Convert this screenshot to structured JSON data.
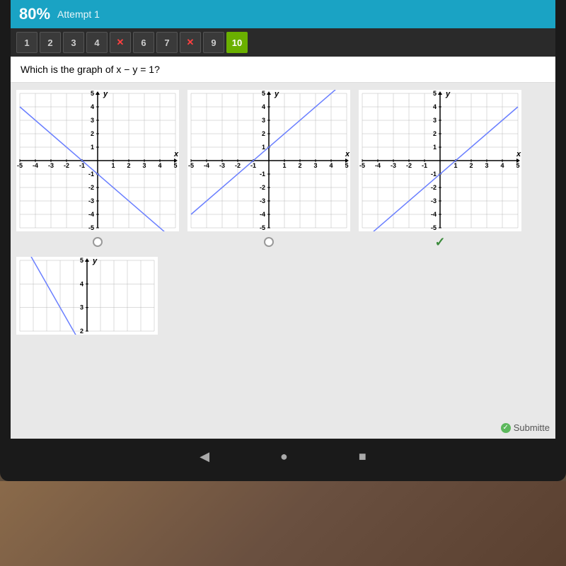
{
  "header": {
    "score": "80%",
    "attempt": "Attempt 1"
  },
  "nav": {
    "items": [
      {
        "label": "1",
        "state": "normal"
      },
      {
        "label": "2",
        "state": "normal"
      },
      {
        "label": "3",
        "state": "normal"
      },
      {
        "label": "4",
        "state": "normal"
      },
      {
        "label": "✕",
        "state": "wrong"
      },
      {
        "label": "6",
        "state": "normal"
      },
      {
        "label": "7",
        "state": "normal"
      },
      {
        "label": "✕",
        "state": "wrong"
      },
      {
        "label": "9",
        "state": "normal"
      },
      {
        "label": "10",
        "state": "current"
      }
    ]
  },
  "question": {
    "text": "Which is the graph of x − y = 1?"
  },
  "charts": {
    "axis": {
      "xmin": -5,
      "xmax": 5,
      "ymin": -5,
      "ymax": 5,
      "tick_step": 1,
      "grid_color": "#b8b8b8",
      "axis_color": "#000000",
      "line_color": "#6a7fff",
      "line_width": 1.5,
      "label_fontsize": 9,
      "y_label": "y",
      "x_label": "x"
    },
    "options": [
      {
        "slope": -1,
        "intercept": -1,
        "correct": false
      },
      {
        "slope": 1,
        "intercept": 1,
        "correct": false
      },
      {
        "slope": 1,
        "intercept": -1,
        "correct": true
      },
      {
        "slope": -1,
        "intercept": 1,
        "correct": false,
        "partial": true
      }
    ]
  },
  "status": {
    "submitted": "Submitte"
  }
}
